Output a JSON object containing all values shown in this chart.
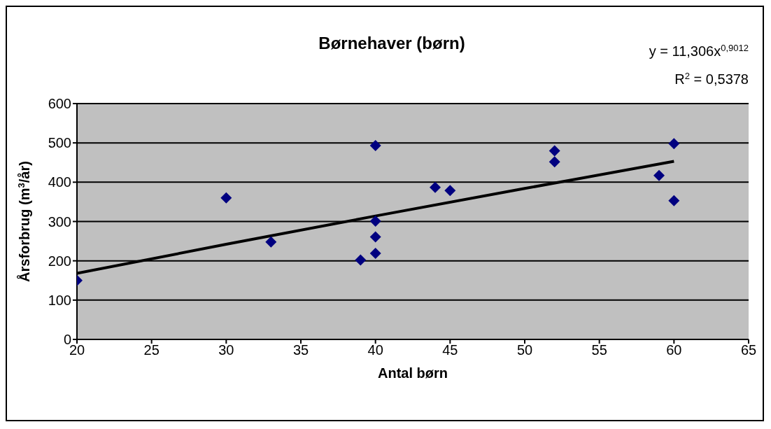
{
  "chart_data": {
    "type": "scatter",
    "title": "Børnehaver (børn)",
    "xlabel": "Antal børn",
    "ylabel": "Årsforbrug (m$^{3}$/år)",
    "annotations": [
      "y = 11,306x$^{0,9012}$",
      "R$^{2}$ = 0,5378"
    ],
    "series": [
      {
        "color": "#000080",
        "marker": "diamond",
        "x": [
          20,
          30,
          33,
          39,
          40,
          40,
          40,
          40,
          44,
          45,
          52,
          52,
          59,
          60,
          60
        ],
        "values": [
          150,
          360,
          248,
          202,
          493,
          301,
          261,
          219,
          387,
          379,
          480,
          452,
          417,
          498,
          353
        ]
      },
      {
        "type": "line",
        "color": "#000000",
        "x": [
          20,
          30,
          40,
          50,
          60
        ],
        "values": [
          168,
          242,
          314,
          384,
          453
        ]
      }
    ],
    "xlim": [
      20,
      65
    ],
    "xticks": [
      20,
      25,
      30,
      35,
      40,
      45,
      50,
      55,
      60,
      65
    ],
    "ylim": [
      0,
      600
    ],
    "yticks": [
      0,
      100,
      200,
      300,
      400,
      500,
      600
    ],
    "grid": "y"
  }
}
